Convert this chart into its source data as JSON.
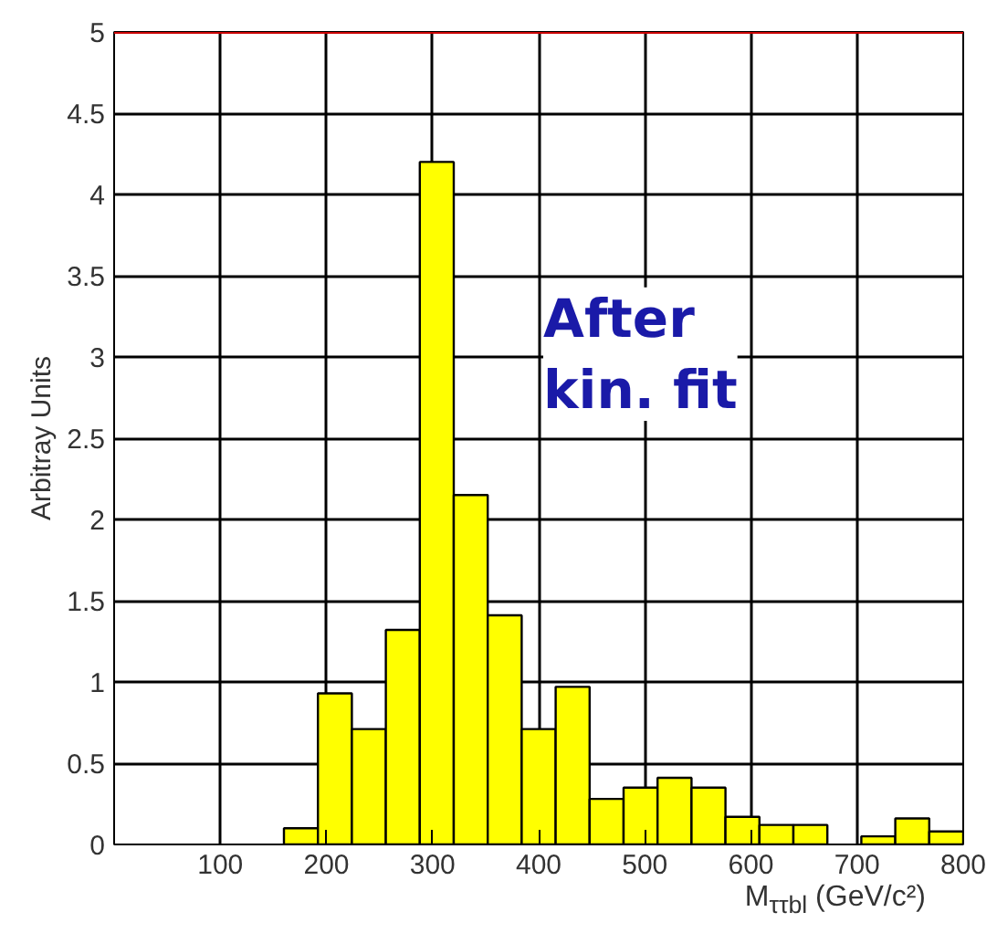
{
  "chart_data": {
    "type": "histogram",
    "xlabel": "M$_{ττbl}$ (GeV/c²)",
    "ylabel": "Arbitray Units",
    "bins": [
      160,
      192,
      224,
      256,
      288,
      320,
      352,
      384,
      416,
      448,
      480,
      512,
      544,
      576,
      608,
      640,
      672,
      704,
      736,
      768,
      800
    ],
    "values": [
      0.1,
      0.93,
      0.71,
      1.32,
      4.2,
      2.15,
      1.41,
      0.71,
      0.97,
      0.28,
      0.35,
      0.41,
      0.35,
      0.17,
      0.12,
      0.12,
      0,
      0.05,
      0.16,
      0.08
    ],
    "color": "#ffff00",
    "xlim": [
      0,
      800
    ],
    "xticks": [
      100,
      200,
      300,
      400,
      500,
      600,
      700,
      800
    ],
    "ylim": [
      0,
      5
    ],
    "yticks": [
      0,
      0.5,
      1,
      1.5,
      2,
      2.5,
      3,
      3.5,
      4,
      4.5,
      5
    ],
    "grid": true,
    "ref_lines": [
      {
        "axis": "y",
        "value": 5,
        "label": null,
        "color": "#cc0000"
      }
    ],
    "annotations": [
      "After\nkin. fit"
    ]
  }
}
